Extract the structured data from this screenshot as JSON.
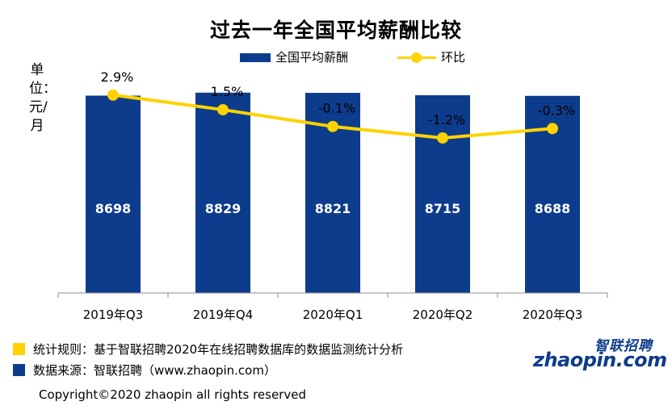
{
  "chart_data": {
    "type": "bar",
    "title": "过去一年全国平均薪酬比较",
    "ylabel": "单位：元/月",
    "categories": [
      "2019年Q3",
      "2019年Q4",
      "2020年Q1",
      "2020年Q2",
      "2020年Q3"
    ],
    "series": [
      {
        "name": "全国平均薪酬",
        "kind": "bar",
        "color": "#0d3c8c",
        "values": [
          8698,
          8829,
          8821,
          8715,
          8688
        ]
      },
      {
        "name": "环比",
        "kind": "line",
        "color": "#ffd200",
        "values": [
          2.9,
          1.5,
          -0.1,
          -1.2,
          -0.3
        ],
        "labels": [
          "2.9%",
          "1.5%",
          "-0.1%",
          "-1.2%",
          "-0.3%"
        ]
      }
    ],
    "ylim": [
      0,
      9000
    ],
    "y2lim": [
      -16,
      3.5
    ],
    "grid": false,
    "legend": "top"
  },
  "footer": {
    "rule": "统计规则：基于智联招聘2020年在线招聘数据库的数据监测统计分析",
    "source": "数据来源：智联招聘（www.zhaopin.com）",
    "copyright": "Copyright©2020 zhaopin all rights reserved"
  },
  "logo": {
    "cn": "智联招聘",
    "en": "zhaopin.com"
  }
}
